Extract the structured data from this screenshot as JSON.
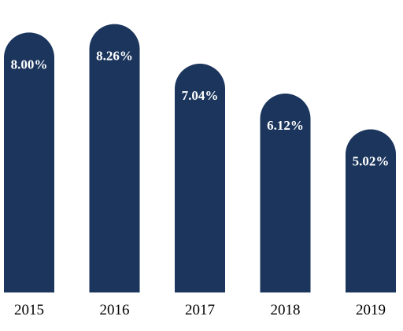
{
  "chart_data": {
    "type": "bar",
    "categories": [
      "2015",
      "2016",
      "2017",
      "2018",
      "2019"
    ],
    "values": [
      8.0,
      8.26,
      7.04,
      6.12,
      5.02
    ],
    "value_labels": [
      "8.00%",
      "8.26%",
      "7.04%",
      "6.12%",
      "5.02%"
    ],
    "title": "",
    "xlabel": "",
    "ylabel": "",
    "ylim": [
      0,
      9
    ],
    "grid": false,
    "legend": "none",
    "bar_shape": "rounded-top",
    "colors": {
      "bar": "#1b355c",
      "value_label": "#ffffff",
      "tick_label": "#000000"
    }
  }
}
